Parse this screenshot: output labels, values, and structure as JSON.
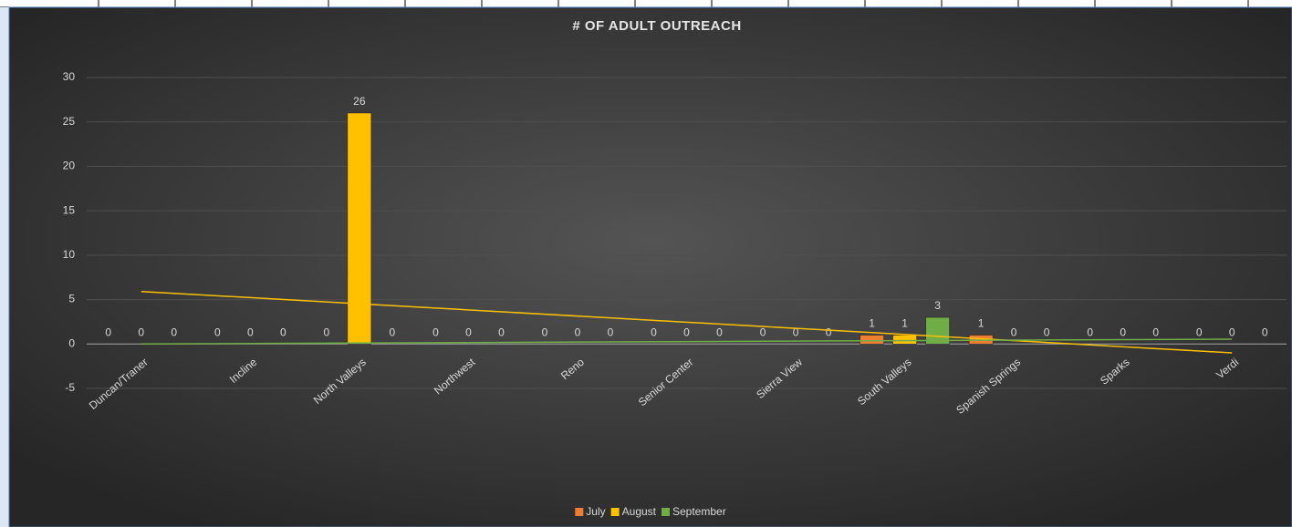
{
  "chart_data": {
    "type": "bar",
    "title": "# OF ADULT OUTREACH",
    "categories": [
      "Duncan/Traner",
      "Incline",
      "North Valleys",
      "Northwest",
      "Reno",
      "Senior Center",
      "Sierra View",
      "South Valleys",
      "Spanish Springs",
      "Sparks",
      "Verdi"
    ],
    "series": [
      {
        "name": "July",
        "color": "#ed7d31",
        "values": [
          0,
          0,
          0,
          0,
          0,
          0,
          0,
          1,
          1,
          0,
          0
        ]
      },
      {
        "name": "August",
        "color": "#ffc000",
        "values": [
          0,
          0,
          26,
          0,
          0,
          0,
          0,
          1,
          0,
          0,
          0
        ],
        "trendline": true
      },
      {
        "name": "September",
        "color": "#70ad47",
        "values": [
          0,
          0,
          0,
          0,
          0,
          0,
          0,
          3,
          0,
          0,
          0
        ],
        "trendline": true
      }
    ],
    "ylim": [
      -5,
      30
    ],
    "yticks": [
      -5,
      0,
      5,
      10,
      15,
      20,
      25,
      30
    ],
    "grid": true,
    "legend": "bottom",
    "data_labels": true
  }
}
